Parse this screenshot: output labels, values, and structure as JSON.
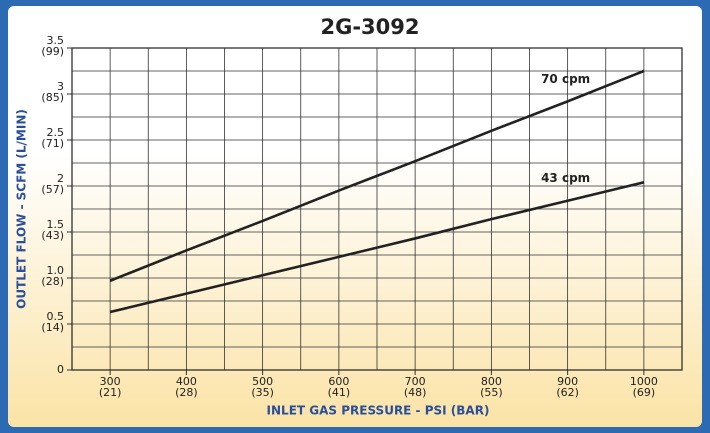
{
  "chart_data": {
    "type": "line",
    "title": "2G-3092",
    "x_label": "INLET GAS PRESSURE - PSI (BAR)",
    "y_label": "OUTLET FLOW - SCFM  (L/MIN)",
    "x": [
      300,
      400,
      500,
      600,
      700,
      800,
      900,
      1000
    ],
    "series": [
      {
        "name": "70 cpm",
        "color": "#222222",
        "values": [
          0.97,
          1.3,
          1.62,
          1.95,
          2.27,
          2.6,
          2.92,
          3.25
        ]
      },
      {
        "name": "43 cpm",
        "color": "#222222",
        "values": [
          0.63,
          0.83,
          1.03,
          1.23,
          1.43,
          1.64,
          1.84,
          2.04
        ]
      }
    ],
    "xlim": [
      250,
      1050
    ],
    "ylim": [
      0,
      3.5
    ],
    "xticks": [
      {
        "value": 300,
        "label": "300",
        "metric": "(21)"
      },
      {
        "value": 400,
        "label": "400",
        "metric": "(28)"
      },
      {
        "value": 500,
        "label": "500",
        "metric": "(35)"
      },
      {
        "value": 600,
        "label": "600",
        "metric": "(41)"
      },
      {
        "value": 700,
        "label": "700",
        "metric": "(48)"
      },
      {
        "value": 800,
        "label": "800",
        "metric": "(55)"
      },
      {
        "value": 900,
        "label": "900",
        "metric": "(62)"
      },
      {
        "value": 1000,
        "label": "1000",
        "metric": "(69)"
      }
    ],
    "yticks": [
      0,
      {
        "value": 0.5,
        "label": "0.5",
        "metric": "(14)"
      },
      {
        "value": 1,
        "label": "1.0",
        "metric": "(28)"
      },
      {
        "value": 1.5,
        "label": "1.5",
        "metric": "(43)"
      },
      {
        "value": 2,
        "label": "2",
        "metric": "(57)"
      },
      {
        "value": 2.5,
        "label": "2.5",
        "metric": "(71)"
      },
      {
        "value": 3,
        "label": "3",
        "metric": "(85)"
      },
      {
        "value": 3.5,
        "label": "3.5",
        "metric": "(99)"
      }
    ],
    "xminorticks": [
      250,
      350,
      450,
      550,
      650,
      750,
      850,
      950,
      1050
    ],
    "yminorticks": [
      0.25,
      0.75,
      1.25,
      1.75,
      2.25,
      2.75,
      3.25
    ],
    "grid": true
  }
}
